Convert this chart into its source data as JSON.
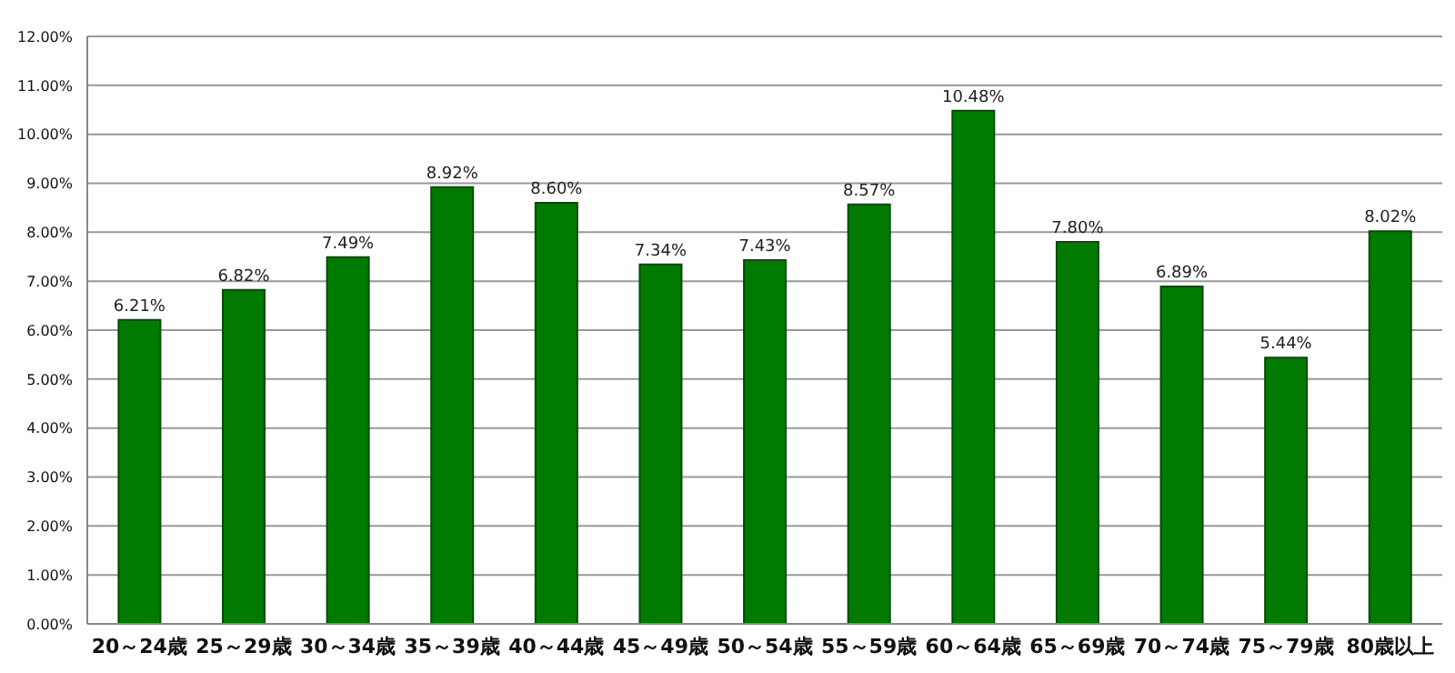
{
  "chart_data": {
    "type": "bar",
    "categories": [
      "20～24歳",
      "25～29歳",
      "30～34歳",
      "35～39歳",
      "40～44歳",
      "45～49歳",
      "50～54歳",
      "55～59歳",
      "60～64歳",
      "65～69歳",
      "70～74歳",
      "75～79歳",
      "80歳以上"
    ],
    "values": [
      6.21,
      6.82,
      7.49,
      8.92,
      8.6,
      7.34,
      7.43,
      8.57,
      10.48,
      7.8,
      6.89,
      5.44,
      8.02
    ],
    "value_labels": [
      "6.21%",
      "6.82%",
      "7.49%",
      "8.92%",
      "8.60%",
      "7.34%",
      "7.43%",
      "8.57%",
      "10.48%",
      "7.80%",
      "6.89%",
      "5.44%",
      "8.02%"
    ],
    "color": "#007a00",
    "ylim": [
      0,
      12
    ],
    "yticks": [
      {
        "value": 0,
        "label": "0.00%"
      },
      {
        "value": 1,
        "label": "1.00%"
      },
      {
        "value": 2,
        "label": "2.00%"
      },
      {
        "value": 3,
        "label": "3.00%"
      },
      {
        "value": 4,
        "label": "4.00%"
      },
      {
        "value": 5,
        "label": "5.00%"
      },
      {
        "value": 6,
        "label": "6.00%"
      },
      {
        "value": 7,
        "label": "7.00%"
      },
      {
        "value": 8,
        "label": "8.00%"
      },
      {
        "value": 9,
        "label": "9.00%"
      },
      {
        "value": 10,
        "label": "10.00%"
      },
      {
        "value": 11,
        "label": "11.00%"
      },
      {
        "value": 12,
        "label": "12.00%"
      }
    ],
    "grid": "y"
  }
}
